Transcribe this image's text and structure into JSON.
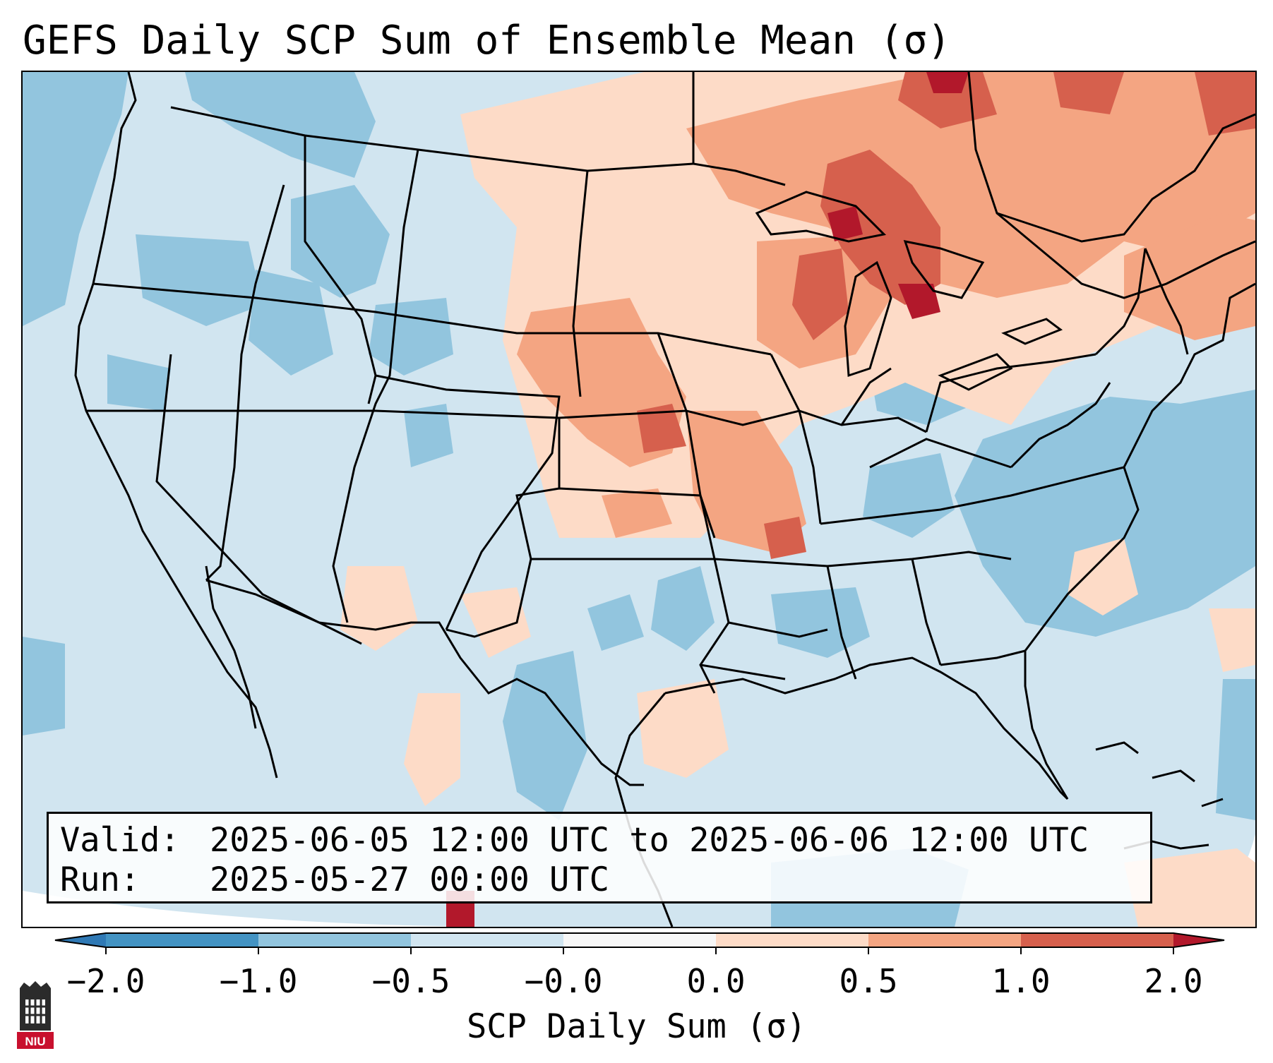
{
  "title": "GEFS Daily SCP Sum of Ensemble Mean (σ)",
  "info": {
    "valid_label": "Valid:",
    "valid_value": "2025-06-05 12:00 UTC to 2025-06-06 12:00 UTC",
    "run_label": "Run:",
    "run_value": "2025-05-27 00:00 UTC"
  },
  "colorbar": {
    "label": "SCP Daily Sum (σ)",
    "ticks": [
      "−2.0",
      "−1.0",
      "−0.5",
      "−0.0",
      "0.0",
      "0.5",
      "1.0",
      "2.0"
    ],
    "bins": [
      {
        "range": "below -2.0",
        "color": "#2f79b5"
      },
      {
        "range": "-2.0 to -1.0",
        "color": "#4393c3"
      },
      {
        "range": "-1.0 to -0.5",
        "color": "#92c5de"
      },
      {
        "range": "-0.5 to -0.0",
        "color": "#d1e5f0"
      },
      {
        "range": "-0.0 to 0.0",
        "color": "#f7f7f7"
      },
      {
        "range": "0.0 to 0.5",
        "color": "#fddbc7"
      },
      {
        "range": "0.5 to 1.0",
        "color": "#f4a582"
      },
      {
        "range": "1.0 to 2.0",
        "color": "#d6604d"
      },
      {
        "range": "above 2.0",
        "color": "#b2182b"
      }
    ]
  },
  "logo": {
    "text": "NIU",
    "color": "#c8102e"
  }
}
